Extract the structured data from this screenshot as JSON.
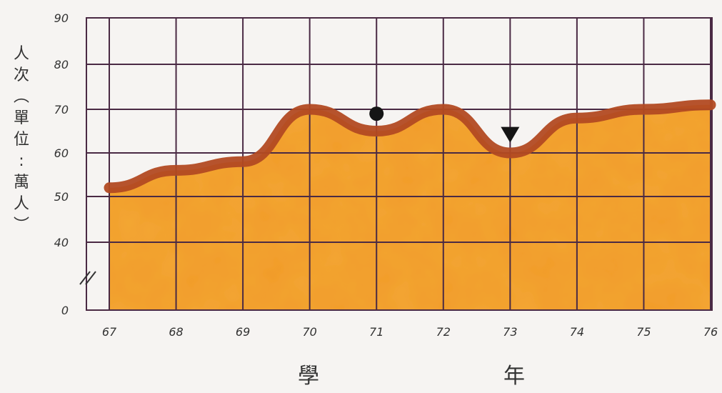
{
  "chart_data": {
    "type": "area",
    "x": [
      67,
      68,
      69,
      70,
      71,
      72,
      73,
      74,
      75,
      76
    ],
    "values": [
      52,
      56,
      58,
      70,
      65,
      70,
      60,
      68,
      70,
      71
    ],
    "x_ticks": [
      "67",
      "68",
      "69",
      "70",
      "71",
      "72",
      "73",
      "74",
      "75",
      "76"
    ],
    "y_ticks": [
      "0",
      "40",
      "50",
      "60",
      "70",
      "80",
      "90"
    ],
    "ylim": [
      0,
      90
    ],
    "axis_break": true,
    "xlabel_chars": [
      "學",
      "年"
    ],
    "ylabel_chars": [
      "人",
      "次",
      "︵",
      "單",
      "位",
      ":",
      "萬",
      "人",
      "︶"
    ],
    "markers": [
      {
        "x": 71,
        "y": 69,
        "shape": "circle"
      },
      {
        "x": 73,
        "y": 64,
        "shape": "triangle-down"
      }
    ],
    "grid": true,
    "colors": {
      "area": "#f3a733",
      "line": "#b24a22",
      "grid": "#4a2a44"
    }
  }
}
